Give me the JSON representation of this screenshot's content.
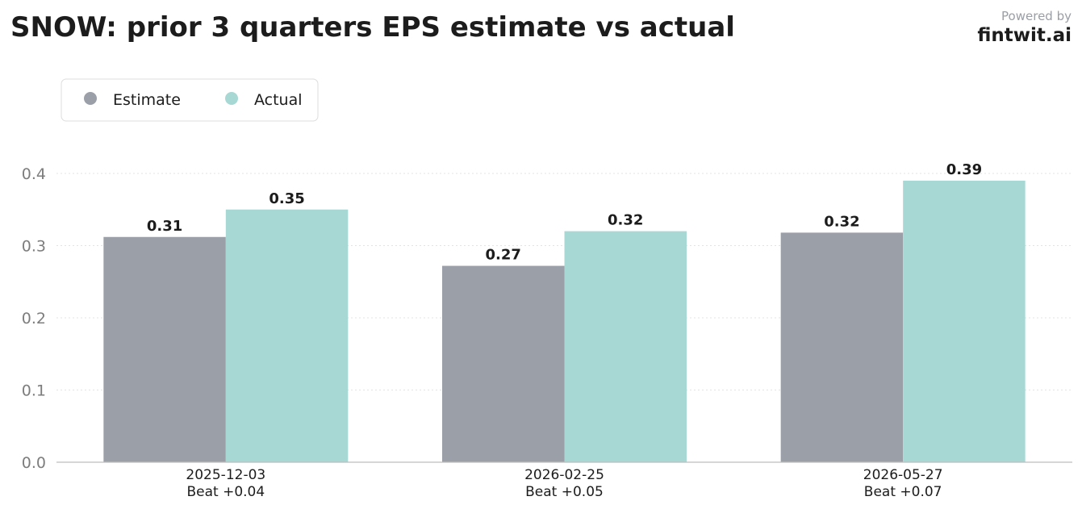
{
  "header": {
    "title": "SNOW: prior 3 quarters EPS estimate vs actual",
    "powered_by": "Powered by",
    "brand": "fintwit.ai"
  },
  "colors": {
    "estimate": "#9b9fa7",
    "actual": "#a8d8d4",
    "grid": "#e3e3e3",
    "axis": "#bdbdbd"
  },
  "chart_data": {
    "type": "bar",
    "title": "SNOW: prior 3 quarters EPS estimate vs actual",
    "categories": [
      "2025-12-03",
      "2026-02-25",
      "2026-05-27"
    ],
    "category_sublabels": [
      "Beat +0.04",
      "Beat +0.05",
      "Beat +0.07"
    ],
    "series": [
      {
        "name": "Estimate",
        "values": [
          0.312,
          0.272,
          0.318
        ],
        "labels": [
          "0.31",
          "0.27",
          "0.32"
        ]
      },
      {
        "name": "Actual",
        "values": [
          0.35,
          0.32,
          0.39
        ],
        "labels": [
          "0.35",
          "0.32",
          "0.39"
        ]
      }
    ],
    "yticks": [
      "0.0",
      "0.1",
      "0.2",
      "0.3",
      "0.4"
    ],
    "ylim": [
      0,
      0.4
    ],
    "xlabel": "",
    "ylabel": "",
    "grid": true,
    "legend_position": "top-left"
  }
}
